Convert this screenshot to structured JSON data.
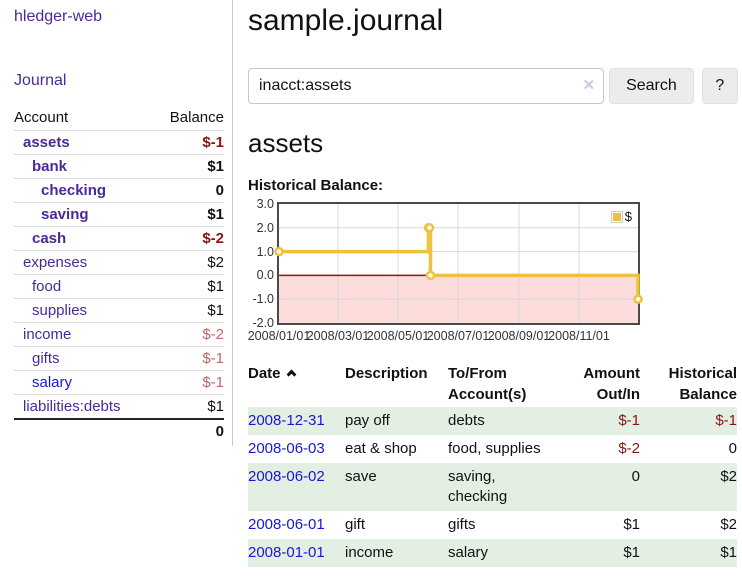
{
  "sidebar": {
    "app_title": "hledger-web",
    "nav_journal": "Journal",
    "accounts": {
      "headers": {
        "account": "Account",
        "balance": "Balance"
      },
      "rows": [
        {
          "name": "assets",
          "balance": "$-1",
          "level": 1,
          "bold": true,
          "link_color": "purple",
          "balance_tone": "neg"
        },
        {
          "name": "bank",
          "balance": "$1",
          "level": 2,
          "bold": true,
          "link_color": "purple",
          "balance_tone": "plain"
        },
        {
          "name": "checking",
          "balance": "0",
          "level": 3,
          "bold": true,
          "link_color": "purple",
          "balance_tone": "plain"
        },
        {
          "name": "saving",
          "balance": "$1",
          "level": 3,
          "bold": true,
          "link_color": "purple",
          "balance_tone": "plain"
        },
        {
          "name": "cash",
          "balance": "$-2",
          "level": 2,
          "bold": true,
          "link_color": "purple",
          "balance_tone": "neg"
        },
        {
          "name": "expenses",
          "balance": "$2",
          "level": 1,
          "bold": false,
          "link_color": "purple",
          "balance_tone": "plain"
        },
        {
          "name": "food",
          "balance": "$1",
          "level": 2,
          "bold": false,
          "link_color": "purple",
          "balance_tone": "plain"
        },
        {
          "name": "supplies",
          "balance": "$1",
          "level": 2,
          "bold": false,
          "link_color": "purple",
          "balance_tone": "plain"
        },
        {
          "name": "income",
          "balance": "$-2",
          "level": 1,
          "bold": false,
          "link_color": "purple",
          "balance_tone": "negsoft"
        },
        {
          "name": "gifts",
          "balance": "$-1",
          "level": 2,
          "bold": false,
          "link_color": "purple",
          "balance_tone": "negsoft"
        },
        {
          "name": "salary",
          "balance": "$-1",
          "level": 2,
          "bold": false,
          "link_color": "blue",
          "balance_tone": "negsoft"
        },
        {
          "name": "liabilities:debts",
          "balance": "$1",
          "level": 1,
          "bold": false,
          "link_color": "purple",
          "balance_tone": "plain"
        }
      ],
      "total": "0"
    }
  },
  "main": {
    "title": "sample.journal",
    "search": {
      "value": "inacct:assets",
      "clear_icon": "✕",
      "button_label": "Search",
      "help_label": "?"
    },
    "account_heading": "assets",
    "chart_heading": "Historical Balance:"
  },
  "chart_data": {
    "type": "line",
    "step": true,
    "title": "Historical Balance:",
    "ylabel": "",
    "xlabel": "",
    "ylim": [
      -2.0,
      3.0
    ],
    "yticks": [
      "3.0",
      "2.0",
      "1.0",
      "0.0",
      "-1.0",
      "-2.0"
    ],
    "xticks": [
      "2008/01/01",
      "2008/03/01",
      "2008/05/01",
      "2008/07/01",
      "2008/09/01",
      "2008/11/01"
    ],
    "x_range": [
      "2008-01-01",
      "2008-12-31"
    ],
    "grid": true,
    "legend_position": "top-right",
    "series": [
      {
        "name": "$",
        "color": "#edc240",
        "points": [
          {
            "date": "2008-01-01",
            "value": 1
          },
          {
            "date": "2008-06-01",
            "value": 2
          },
          {
            "date": "2008-06-02",
            "value": 2
          },
          {
            "date": "2008-06-03",
            "value": 0
          },
          {
            "date": "2008-12-31",
            "value": -1
          }
        ]
      }
    ],
    "negative_region_color": "#fddcdc",
    "zero_line_color": "#911414",
    "series_color": "#edc240"
  },
  "transactions": {
    "headers": {
      "date": "Date",
      "description": "Description",
      "accounts": "To/From Account(s)",
      "amount": "Amount Out/In",
      "historical": "Historical Balance"
    },
    "rows": [
      {
        "date": "2008-12-31",
        "description": "pay off",
        "accounts": "debts",
        "amount": "$-1",
        "historical": "$-1",
        "stripe": true
      },
      {
        "date": "2008-06-03",
        "description": "eat & shop",
        "accounts": "food, supplies",
        "amount": "$-2",
        "historical": "0",
        "stripe": false
      },
      {
        "date": "2008-06-02",
        "description": "save",
        "accounts": "saving, checking",
        "amount": "0",
        "historical": "$2",
        "stripe": true
      },
      {
        "date": "2008-06-01",
        "description": "gift",
        "accounts": "gifts",
        "amount": "$1",
        "historical": "$2",
        "stripe": false
      },
      {
        "date": "2008-01-01",
        "description": "income",
        "accounts": "salary",
        "amount": "$1",
        "historical": "$1",
        "stripe": true
      }
    ]
  }
}
